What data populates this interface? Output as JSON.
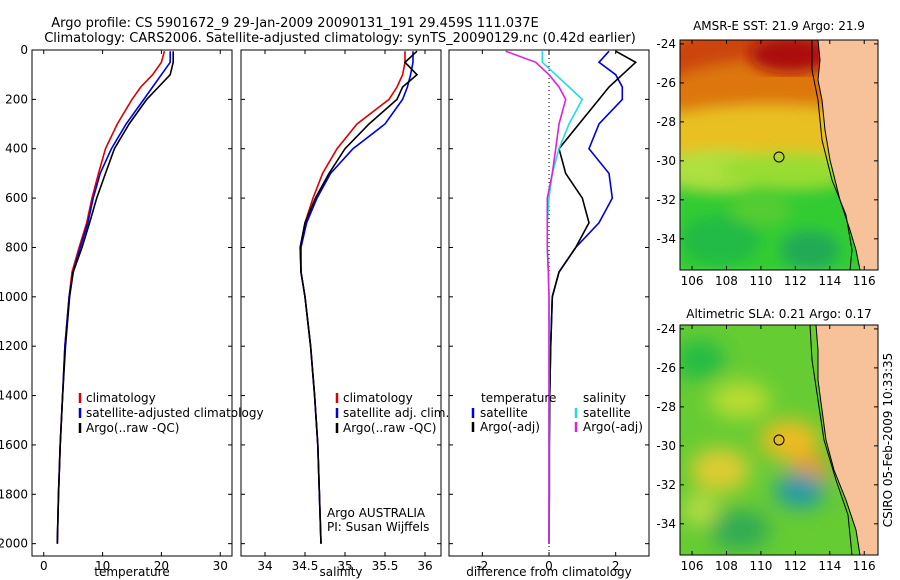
{
  "header": {
    "line1": "Argo profile: CS 5901672_9 29-Jan-2009 20090131_191 29.459S 111.037E",
    "line2": "Climatology: CARS2006. Satellite-adjusted climatology: synTS_20090129.nc (0.42d earlier)"
  },
  "side_label": "CSIRO 05-Feb-2009 10:33:35",
  "colors": {
    "climatology": "#dd0000",
    "satellite": "#0000dd",
    "argo": "#000000",
    "sal_satellite": "#22dddd",
    "sal_argo": "#dd22dd",
    "land": "#f7c29a"
  },
  "chart_data": [
    {
      "type": "line",
      "xlabel": "temperature",
      "xlim": [
        -2,
        32
      ],
      "ylim": [
        0,
        2050
      ],
      "y_reversed": true,
      "xticks": [
        0,
        10,
        20,
        30
      ],
      "yticks": [
        0,
        200,
        400,
        600,
        800,
        1000,
        1200,
        1400,
        1600,
        1800,
        2000
      ],
      "legend": [
        "climatology",
        "satellite-adjusted climatology",
        "Argo(..raw -QC)"
      ],
      "series": [
        {
          "name": "climatology",
          "color": "#dd0000",
          "depth": [
            5,
            50,
            100,
            150,
            200,
            300,
            400,
            500,
            600,
            700,
            800,
            900,
            1000,
            1200,
            1400,
            1600,
            1800,
            2000
          ],
          "values": [
            20.5,
            20,
            18.5,
            16.5,
            15,
            12.5,
            10.5,
            9.3,
            8.2,
            7.3,
            6,
            4.8,
            4.3,
            3.6,
            3.2,
            2.8,
            2.5,
            2.3
          ]
        },
        {
          "name": "satellite-adjusted climatology",
          "color": "#0000dd",
          "depth": [
            5,
            50,
            100,
            150,
            200,
            300,
            400,
            500,
            600,
            700,
            800,
            900,
            1000,
            1200,
            1400,
            1600,
            1800,
            2000
          ],
          "values": [
            21.5,
            21.5,
            20,
            18.5,
            17,
            14,
            11.5,
            9.6,
            8.4,
            7.5,
            6.2,
            5,
            4.3,
            3.6,
            3.2,
            2.8,
            2.5,
            2.3
          ]
        },
        {
          "name": "Argo(..raw -QC)",
          "color": "#000000",
          "depth": [
            5,
            50,
            100,
            150,
            200,
            300,
            400,
            500,
            600,
            700,
            800,
            900,
            1000,
            1200,
            1400,
            1600,
            1800,
            2000
          ],
          "values": [
            22,
            22,
            21.5,
            19.5,
            17.5,
            14.5,
            12,
            10.5,
            9,
            7.8,
            6.5,
            5,
            4.4,
            3.7,
            3.2,
            2.8,
            2.5,
            2.3
          ]
        }
      ]
    },
    {
      "type": "line",
      "xlabel": "salinity",
      "xlim": [
        33.7,
        36.2
      ],
      "ylim": [
        0,
        2050
      ],
      "y_reversed": true,
      "xticks": [
        34,
        34.5,
        35,
        35.5,
        36
      ],
      "legend": [
        "climatology",
        "satellite adj. clim.",
        "Argo(..raw -QC)"
      ],
      "annotation": [
        "Argo AUSTRALIA",
        "PI: Susan Wijffels"
      ],
      "series": [
        {
          "name": "climatology",
          "color": "#dd0000",
          "depth": [
            5,
            50,
            100,
            150,
            200,
            300,
            400,
            500,
            600,
            700,
            800,
            900,
            1000,
            1200,
            1400,
            1600,
            1800,
            2000
          ],
          "values": [
            35.75,
            35.75,
            35.72,
            35.65,
            35.55,
            35.15,
            34.9,
            34.72,
            34.6,
            34.5,
            34.44,
            34.45,
            34.5,
            34.57,
            34.62,
            34.66,
            34.68,
            34.7
          ]
        },
        {
          "name": "satellite adj. clim.",
          "color": "#0000dd",
          "depth": [
            5,
            50,
            100,
            150,
            200,
            300,
            400,
            500,
            600,
            700,
            800,
            900,
            1000,
            1200,
            1400,
            1600,
            1800,
            2000
          ],
          "values": [
            35.85,
            35.85,
            35.82,
            35.78,
            35.72,
            35.5,
            35.1,
            34.82,
            34.65,
            34.52,
            34.45,
            34.45,
            34.5,
            34.57,
            34.62,
            34.66,
            34.68,
            34.7
          ]
        },
        {
          "name": "Argo(..raw -QC)",
          "color": "#000000",
          "depth": [
            5,
            50,
            100,
            150,
            200,
            300,
            400,
            500,
            600,
            700,
            800,
            900,
            1000,
            1200,
            1400,
            1600,
            1800,
            2000
          ],
          "values": [
            35.9,
            35.75,
            35.9,
            35.72,
            35.65,
            35.3,
            35,
            34.8,
            34.63,
            34.5,
            34.44,
            34.45,
            34.5,
            34.57,
            34.62,
            34.66,
            34.68,
            34.7
          ]
        }
      ]
    },
    {
      "type": "line",
      "xlabel": "difference from climatology",
      "xlim": [
        -3,
        3
      ],
      "ylim": [
        0,
        2050
      ],
      "y_reversed": true,
      "xticks": [
        -2,
        0,
        2
      ],
      "legend_headers": [
        "temperature",
        "salinity"
      ],
      "legend": [
        "satellite",
        "Argo(-adj)",
        "satellite",
        "Argo(-adj)"
      ],
      "series": [
        {
          "name": "satellite",
          "color": "#0000dd",
          "depth": [
            5,
            50,
            100,
            150,
            200,
            300,
            400,
            500,
            600,
            700,
            800,
            900,
            1000,
            1200,
            1400,
            1600,
            1800,
            2000
          ],
          "values": [
            1.8,
            1.5,
            2.0,
            2.2,
            2.2,
            1.5,
            1.2,
            1.8,
            1.9,
            1.5,
            0.8,
            0.3,
            0.1,
            0.05,
            0.02,
            0.01,
            0.01,
            0
          ]
        },
        {
          "name": "Argo(-adj)",
          "color": "#000000",
          "depth": [
            5,
            50,
            100,
            150,
            200,
            300,
            400,
            500,
            600,
            700,
            800,
            900,
            1000,
            1200,
            1400,
            1600,
            1800,
            2000
          ],
          "values": [
            2.0,
            2.6,
            2.2,
            1.8,
            1.5,
            0.9,
            0.3,
            0.5,
            1.0,
            1.2,
            0.8,
            0.3,
            0.1,
            0.05,
            0.02,
            0.01,
            0.01,
            0
          ]
        },
        {
          "name": "satellite",
          "color": "#22dddd",
          "depth": [
            5,
            50,
            100,
            150,
            200,
            300,
            400,
            500,
            600,
            700,
            800,
            900,
            1000,
            1200,
            1400,
            1600,
            1800,
            2000
          ],
          "values": [
            -0.2,
            -0.2,
            0.2,
            0.6,
            1.0,
            0.6,
            0.3,
            0.1,
            0.0,
            -0.05,
            -0.05,
            -0.02,
            0,
            0,
            0,
            0,
            0,
            0
          ]
        },
        {
          "name": "Argo(-adj)",
          "color": "#dd22dd",
          "depth": [
            5,
            50,
            100,
            150,
            200,
            300,
            400,
            500,
            600,
            700,
            800,
            900,
            1000,
            1200,
            1400,
            1600,
            1800,
            2000
          ],
          "values": [
            -1.3,
            -0.4,
            0.0,
            0.3,
            0.5,
            0.3,
            0.2,
            0.1,
            -0.05,
            -0.05,
            -0.05,
            -0.02,
            0,
            0,
            0,
            0,
            0,
            0
          ]
        }
      ]
    },
    {
      "type": "heatmap",
      "title": "AMSR-E SST: 21.9  Argo: 21.9",
      "xlim": [
        105.3,
        116.8
      ],
      "ylim": [
        -35.6,
        -23.8
      ],
      "xticks": [
        106,
        108,
        110,
        112,
        114,
        116
      ],
      "yticks": [
        -24,
        -26,
        -28,
        -30,
        -32,
        -34
      ],
      "marker": {
        "lon": 111.0,
        "lat": -29.46
      }
    },
    {
      "type": "heatmap",
      "title": "Altimetric SLA: 0.21  Argo: 0.17",
      "xlim": [
        105.3,
        116.8
      ],
      "ylim": [
        -35.6,
        -23.8
      ],
      "xticks": [
        106,
        108,
        110,
        112,
        114,
        116
      ],
      "yticks": [
        -24,
        -26,
        -28,
        -30,
        -32,
        -34
      ],
      "marker": {
        "lon": 111.0,
        "lat": -29.46
      }
    }
  ]
}
